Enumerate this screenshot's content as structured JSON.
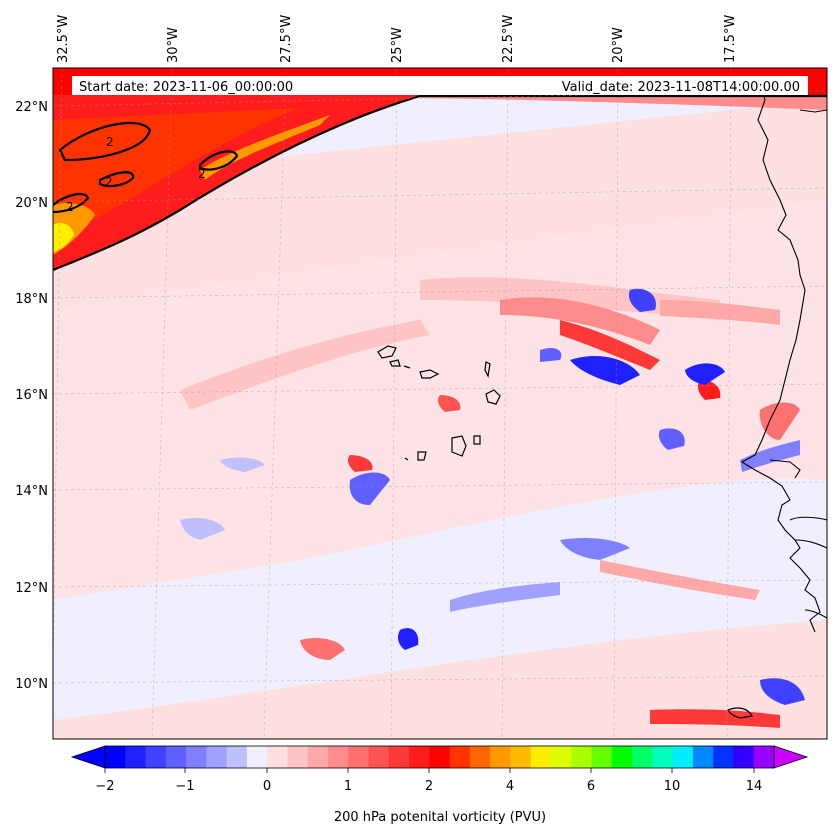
{
  "header": {
    "start_label": "Start date: 2023-11-06_00:00:00",
    "valid_label": "Valid_date: 2023-11-08T14:00:00.00"
  },
  "map": {
    "lon_labels": [
      "32.5°W",
      "30°W",
      "27.5°W",
      "25°W",
      "22.5°W",
      "20°W",
      "17.5°W"
    ],
    "lat_labels": [
      "22°N",
      "20°N",
      "18°N",
      "16°N",
      "14°N",
      "12°N",
      "10°N"
    ],
    "contour_label": "2",
    "gridlines": true,
    "colors": {
      "background": "#efefff",
      "coastline": "#000000",
      "contour": "#000000"
    }
  },
  "colorbar": {
    "title": "200 hPa potenital vorticity (PVU)",
    "tick_labels": [
      "−2",
      "−1",
      "0",
      "1",
      "2",
      "4",
      "6",
      "10",
      "14"
    ],
    "colors": [
      "#0000ff",
      "#2020ff",
      "#4040ff",
      "#6060ff",
      "#8080ff",
      "#a0a0ff",
      "#c0c0ff",
      "#efefff",
      "#ffe0e0",
      "#ffc4c4",
      "#ffa8a8",
      "#ff8c8c",
      "#ff7070",
      "#ff5454",
      "#ff3838",
      "#ff1c1c",
      "#ff0000",
      "#ff3300",
      "#ff6600",
      "#ff9900",
      "#ffbb00",
      "#ffee00",
      "#ddff00",
      "#aaff00",
      "#66ff00",
      "#00ff00",
      "#00ff66",
      "#00ffbb",
      "#00eeff",
      "#0088ff",
      "#0033ff",
      "#3300ff",
      "#9900ff"
    ],
    "extend_min_color": "#0000ff",
    "extend_max_color": "#cc00ff"
  }
}
